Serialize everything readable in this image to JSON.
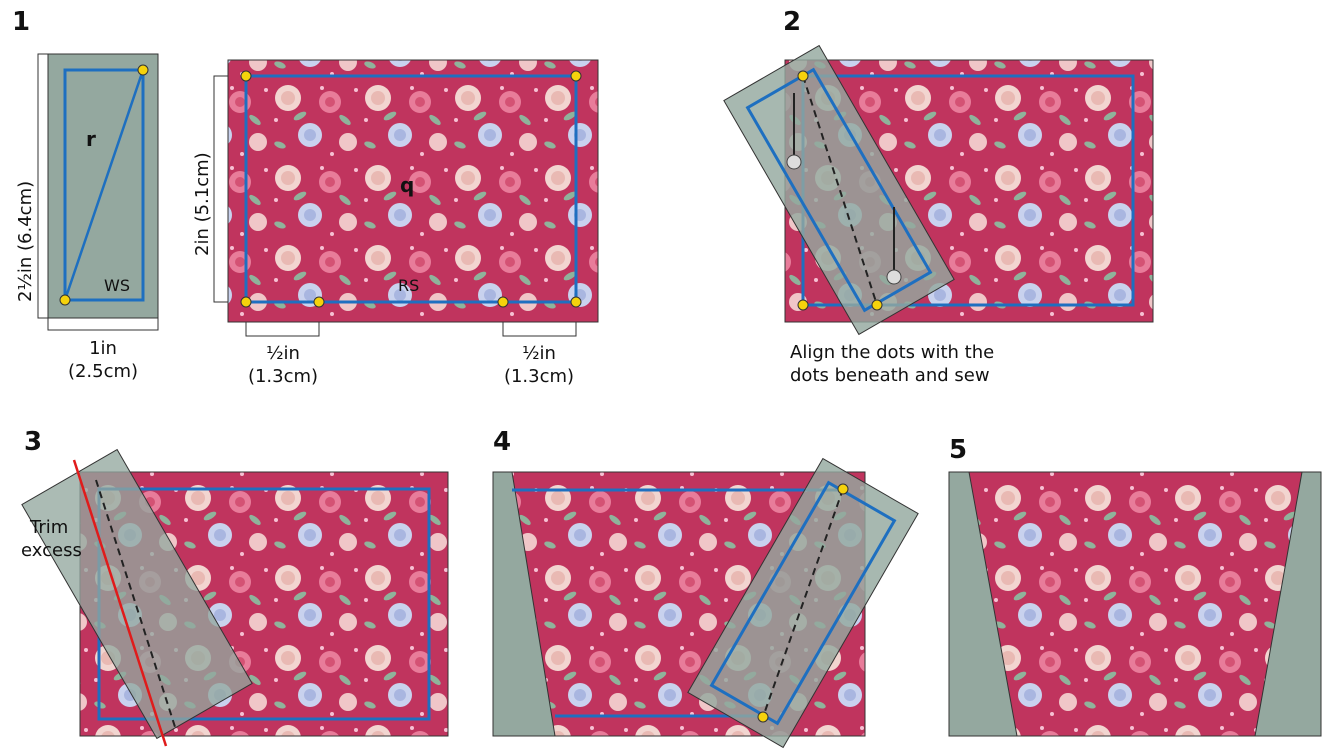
{
  "steps": {
    "s1": "1",
    "s2": "2",
    "s3": "3",
    "s4": "4",
    "s5": "5"
  },
  "step1": {
    "strip_letter": "r",
    "strip_side": "WS",
    "strip_height_label": "2½in (6.4cm)",
    "strip_width_label_1": "1in",
    "strip_width_label_2": "(2.5cm)",
    "rect_letter": "q",
    "rect_side": "RS",
    "rect_height_label": "2in (5.1cm)",
    "left_offset_label_1": "½in",
    "left_offset_label_2": "(1.3cm)",
    "right_offset_label_1": "½in",
    "right_offset_label_2": "(1.3cm)"
  },
  "step2": {
    "caption_line1": "Align the dots with the",
    "caption_line2": "dots beneath and sew"
  },
  "step3": {
    "trim_line1": "Trim",
    "trim_line2": "excess"
  },
  "colors": {
    "fabric": "#c0345e",
    "strip": "#94a89f",
    "seam_line": "#1e6fc0",
    "dot": "#f5d20c",
    "trim_line": "#e01b1b"
  }
}
